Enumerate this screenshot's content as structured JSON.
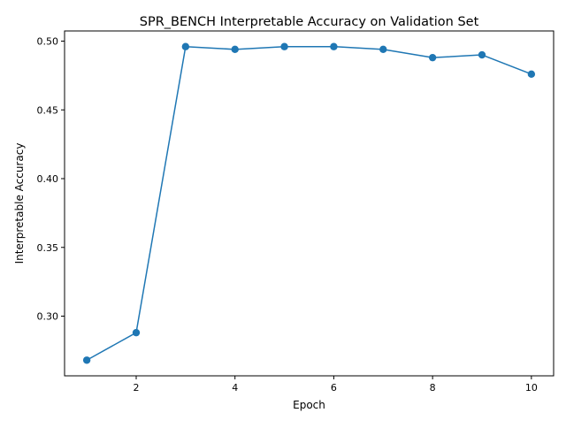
{
  "chart_data": {
    "type": "line",
    "title": "SPR_BENCH Interpretable Accuracy on Validation Set",
    "xlabel": "Epoch",
    "ylabel": "Interpretable Accuracy",
    "xlim": [
      0.55,
      10.45
    ],
    "ylim": [
      0.2566,
      0.5074
    ],
    "xticks": [
      2,
      4,
      6,
      8,
      10
    ],
    "xtick_labels": [
      "2",
      "4",
      "6",
      "8",
      "10"
    ],
    "yticks": [
      0.3,
      0.35,
      0.4,
      0.45,
      0.5
    ],
    "ytick_labels": [
      "0.30",
      "0.35",
      "0.40",
      "0.45",
      "0.50"
    ],
    "grid": false,
    "series": [
      {
        "color": "#1f77b4",
        "marker": "circle",
        "x": [
          1,
          2,
          3,
          4,
          5,
          6,
          7,
          8,
          9,
          10
        ],
        "y": [
          0.268,
          0.288,
          0.496,
          0.494,
          0.496,
          0.496,
          0.494,
          0.488,
          0.49,
          0.476
        ]
      }
    ]
  }
}
